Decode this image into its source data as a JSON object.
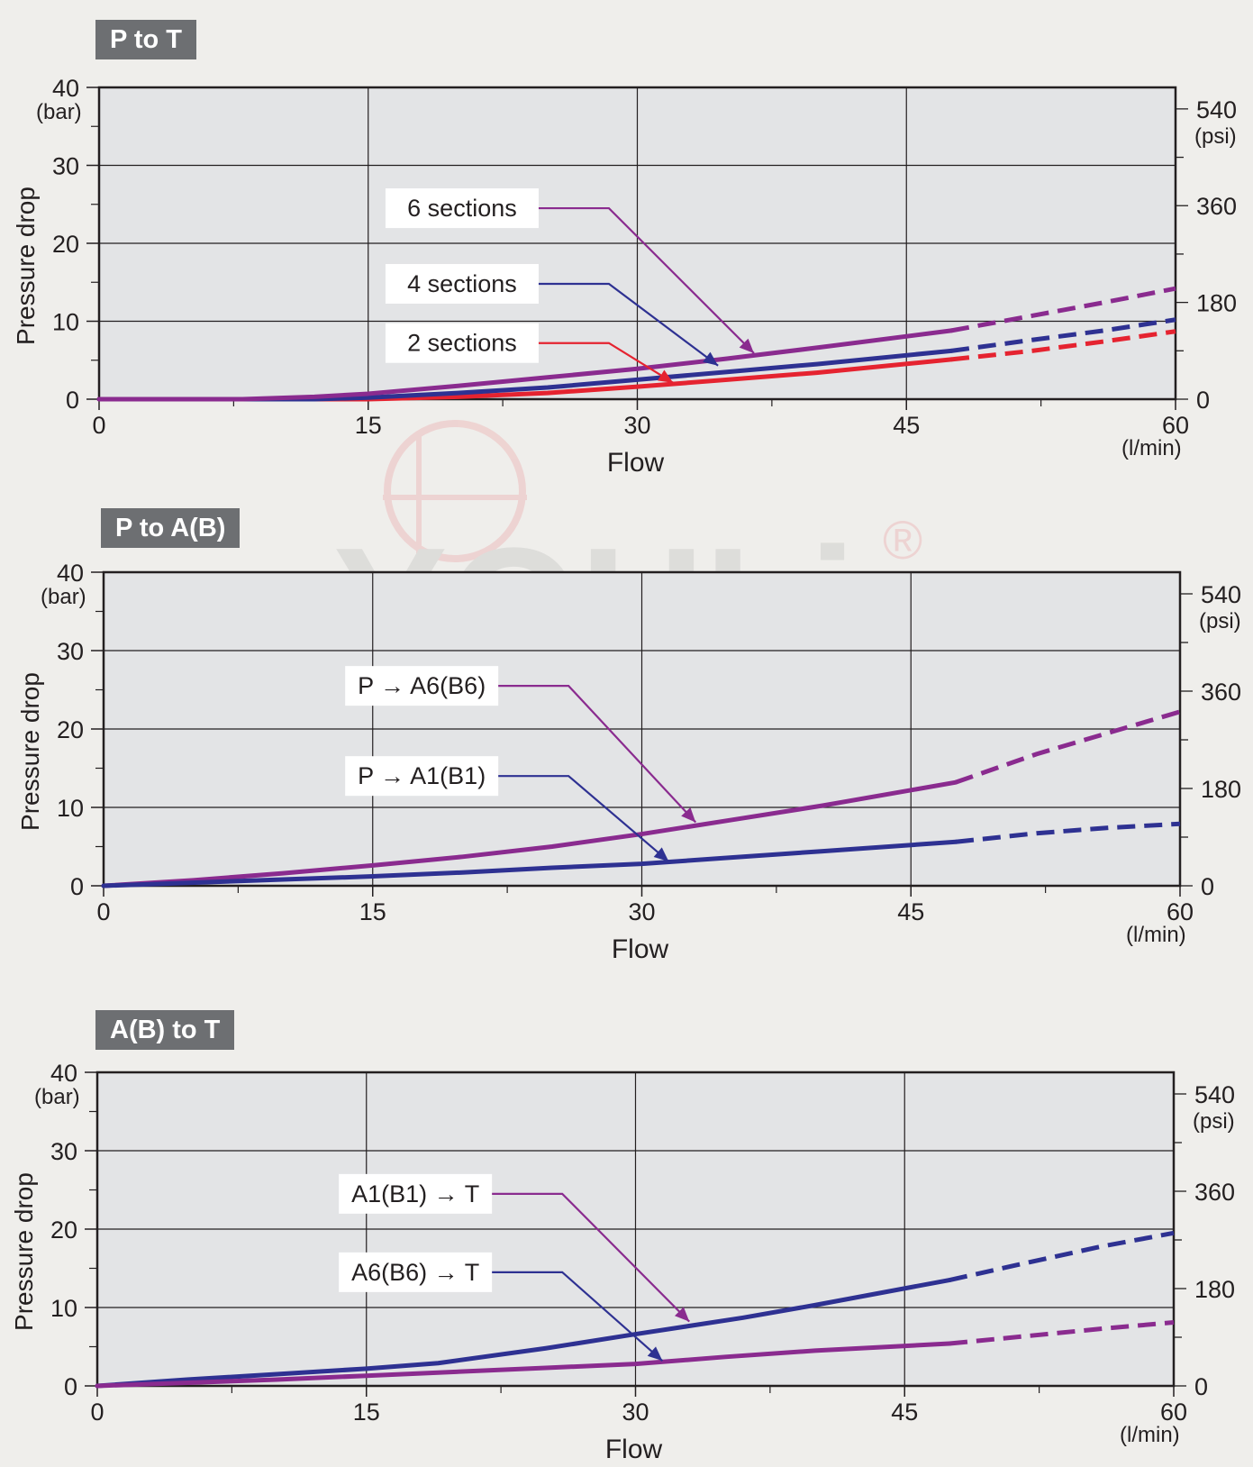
{
  "watermark": {
    "text": "YOULi",
    "registered": "®"
  },
  "colors": {
    "background": "#efeeeb",
    "plot_area": "#e3e4e6",
    "badge": "#6d6f72",
    "red": "#e52330",
    "blue": "#2e3192",
    "purple": "#8a2b8f"
  },
  "chart_data": [
    {
      "type": "line",
      "title": "P to T",
      "xlabel": "Flow",
      "x_unit": "(l/min)",
      "ylabel": "Pressure drop",
      "y_unit": "(bar)",
      "y2_unit": "(psi)",
      "xlim": [
        0,
        60
      ],
      "ylim": [
        0,
        40
      ],
      "y2lim": [
        0,
        580
      ],
      "x_ticks": [
        "0",
        "15",
        "30",
        "45",
        "60"
      ],
      "y_ticks": [
        "0",
        "10",
        "20",
        "30",
        "40"
      ],
      "y2_ticks": [
        "0",
        "180",
        "360",
        "540"
      ],
      "grid": true,
      "series": [
        {
          "name": "2 sections",
          "color": "red",
          "dashed_from_x": 47.5,
          "x": [
            0,
            15,
            20,
            25,
            30,
            35,
            40,
            47.5,
            52,
            56,
            60
          ],
          "y": [
            0,
            0,
            0.3,
            0.8,
            1.6,
            2.5,
            3.4,
            5.1,
            6.2,
            7.4,
            8.7
          ]
        },
        {
          "name": "4 sections",
          "color": "blue",
          "dashed_from_x": 47.5,
          "x": [
            0,
            12,
            15,
            20,
            25,
            30,
            35,
            40,
            47.5,
            52,
            56,
            60
          ],
          "y": [
            0,
            0,
            0.2,
            0.8,
            1.5,
            2.5,
            3.5,
            4.5,
            6.2,
            7.6,
            8.8,
            10.2
          ]
        },
        {
          "name": "6 sections",
          "color": "purple",
          "dashed_from_x": 47.5,
          "x": [
            0,
            8,
            12,
            15,
            20,
            25,
            30,
            35,
            40,
            47.5,
            52,
            56,
            60
          ],
          "y": [
            0,
            0,
            0.3,
            0.7,
            1.7,
            2.8,
            3.9,
            5.2,
            6.6,
            8.8,
            10.7,
            12.4,
            14.2
          ]
        }
      ],
      "annotations": [
        {
          "text": "6 sections",
          "series": 2,
          "label_x": 24.5,
          "label_y": 24.5,
          "point_x": 36.5,
          "point_y": 5.9
        },
        {
          "text": "4 sections",
          "series": 1,
          "label_x": 24.5,
          "label_y": 14.8,
          "point_x": 34.5,
          "point_y": 4.3
        },
        {
          "text": "2 sections",
          "series": 0,
          "label_x": 24.5,
          "label_y": 7.2,
          "point_x": 32,
          "point_y": 2.1
        }
      ]
    },
    {
      "type": "line",
      "title": "P to A(B)",
      "xlabel": "Flow",
      "x_unit": "(l/min)",
      "ylabel": "Pressure drop",
      "y_unit": "(bar)",
      "y2_unit": "(psi)",
      "xlim": [
        0,
        60
      ],
      "ylim": [
        0,
        40
      ],
      "y2lim": [
        0,
        580
      ],
      "x_ticks": [
        "0",
        "15",
        "30",
        "45",
        "60"
      ],
      "y_ticks": [
        "0",
        "10",
        "20",
        "30",
        "40"
      ],
      "y2_ticks": [
        "0",
        "180",
        "360",
        "540"
      ],
      "grid": true,
      "series": [
        {
          "name": "P → A6(B6)",
          "color": "purple",
          "dashed_from_x": 47.5,
          "x": [
            0,
            5,
            10,
            15,
            20,
            25,
            30,
            35,
            40,
            47.5,
            52,
            56,
            60
          ],
          "y": [
            0,
            0.7,
            1.6,
            2.6,
            3.7,
            5,
            6.6,
            8.4,
            10.2,
            13.2,
            16.8,
            19.5,
            22.2
          ]
        },
        {
          "name": "P → A1(B1)",
          "color": "blue",
          "dashed_from_x": 47.5,
          "x": [
            0,
            10,
            15,
            20,
            25,
            30,
            35,
            40,
            47.5,
            52,
            56,
            60
          ],
          "y": [
            0,
            0.8,
            1.2,
            1.7,
            2.3,
            2.8,
            3.6,
            4.4,
            5.6,
            6.7,
            7.4,
            7.9
          ]
        }
      ],
      "annotations": [
        {
          "text": "P → A6(B6)",
          "series": 0,
          "label_x": 22,
          "label_y": 25.5,
          "point_x": 33,
          "point_y": 8.1
        },
        {
          "text": "P → A1(B1)",
          "series": 1,
          "label_x": 22,
          "label_y": 14,
          "point_x": 31.5,
          "point_y": 3.1
        }
      ]
    },
    {
      "type": "line",
      "title": "A(B) to T",
      "xlabel": "Flow",
      "x_unit": "(l/min)",
      "ylabel": "Pressure drop",
      "y_unit": "(bar)",
      "y2_unit": "(psi)",
      "xlim": [
        0,
        60
      ],
      "ylim": [
        0,
        40
      ],
      "y2lim": [
        0,
        580
      ],
      "x_ticks": [
        "0",
        "15",
        "30",
        "45",
        "60"
      ],
      "y_ticks": [
        "0",
        "10",
        "20",
        "30",
        "40"
      ],
      "y2_ticks": [
        "0",
        "180",
        "360",
        "540"
      ],
      "grid": true,
      "series": [
        {
          "name": "A6(B6) → T",
          "color": "blue",
          "dashed_from_x": 47.5,
          "x": [
            0,
            5,
            10,
            15,
            19,
            25,
            30,
            36,
            40,
            47.5,
            52,
            56,
            60
          ],
          "y": [
            0,
            0.8,
            1.5,
            2.2,
            2.9,
            4.8,
            6.6,
            8.7,
            10.3,
            13.5,
            15.8,
            17.8,
            19.5
          ]
        },
        {
          "name": "A1(B1) → T",
          "color": "purple",
          "dashed_from_x": 47.5,
          "x": [
            0,
            10,
            15,
            20,
            25,
            30,
            35,
            40,
            47.5,
            52,
            56,
            60
          ],
          "y": [
            0,
            0.8,
            1.3,
            1.8,
            2.3,
            2.8,
            3.7,
            4.5,
            5.4,
            6.4,
            7.3,
            8.1
          ]
        }
      ],
      "annotations": [
        {
          "text": "A1(B1) → T",
          "series": 1,
          "label_x": 22,
          "label_y": 24.5,
          "point_x": 33,
          "point_y": 8.2
        },
        {
          "text": "A6(B6) → T",
          "series": 0,
          "label_x": 22,
          "label_y": 14.5,
          "point_x": 31.5,
          "point_y": 3.2
        }
      ]
    }
  ]
}
